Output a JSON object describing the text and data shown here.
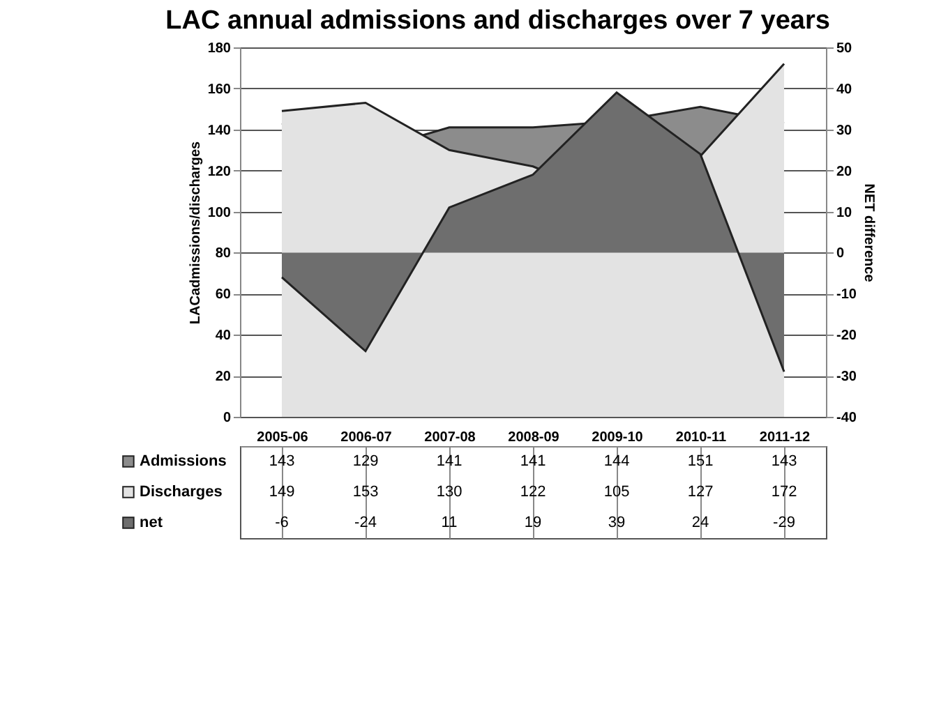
{
  "chart_data": {
    "type": "area",
    "title": "LAC annual admissions and discharges over 7 years",
    "ylabel": "LACadmissions/discharges",
    "y2label": "NET difference",
    "categories": [
      "2005-06",
      "2006-07",
      "2007-08",
      "2008-09",
      "2009-10",
      "2010-11",
      "2011-12"
    ],
    "series": [
      {
        "name": "Admissions",
        "color": "#8c8c8c",
        "values": [
          143,
          129,
          141,
          141,
          144,
          151,
          143
        ]
      },
      {
        "name": "Discharges",
        "color": "#e3e3e3",
        "values": [
          149,
          153,
          130,
          122,
          105,
          127,
          172
        ]
      },
      {
        "name": "net",
        "color": "#6e6e6e",
        "axis": "y2",
        "values": [
          -6,
          -24,
          11,
          19,
          39,
          24,
          -29
        ]
      }
    ],
    "ylim": [
      0,
      180
    ],
    "yticks": [
      0,
      20,
      40,
      60,
      80,
      100,
      120,
      140,
      160,
      180
    ],
    "y2lim": [
      -40,
      50
    ],
    "y2ticks": [
      -40,
      -30,
      -20,
      -10,
      0,
      10,
      20,
      30,
      40,
      50
    ],
    "grid": "y",
    "legend": "bottom left",
    "data_labels": true
  }
}
